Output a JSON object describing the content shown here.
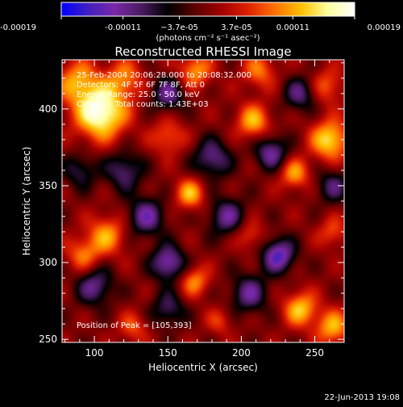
{
  "chart_data": {
    "type": "heatmap",
    "title": "Reconstructed RHESSI Image",
    "xlabel": "Heliocentric X (arcsec)",
    "ylabel": "Heliocentric Y (arcsec)",
    "xlim": [
      78,
      270
    ],
    "ylim": [
      248,
      432
    ],
    "xticks": [
      100,
      150,
      200,
      250
    ],
    "yticks": [
      250,
      300,
      350,
      400
    ],
    "colorbar": {
      "range": [
        -0.00019,
        0.00019
      ],
      "ticks": [
        -0.00019,
        -0.00011,
        -3.7e-05,
        3.7e-05,
        0.00011,
        0.00019
      ],
      "tick_labels": [
        "-0.00019",
        "-0.00011",
        "−3.7e-05",
        "3.7e-05",
        "0.00011",
        "0.00019"
      ],
      "units_label": "(photons cm⁻² s⁻¹ asec⁻²)",
      "colors": [
        "#0000ff",
        "#4020c0",
        "#7a28a8",
        "#4a1a60",
        "#000000",
        "#5a0000",
        "#a00000",
        "#e02000",
        "#ff7000",
        "#ffc000",
        "#ffffa0",
        "#ffffff"
      ]
    },
    "annotations": [
      "25-Feb-2004 20:06:28.000  to  20:08:32.000",
      "Detectors: 4F 5F 6F 7F 8F, Att 0",
      "Energy Range: 25.0 - 50.0 keV",
      "Clean      Total counts: 1.43E+03"
    ],
    "peak_label": "Position of Peak = [105,393]",
    "peak": [
      105,
      393
    ],
    "sources": [
      {
        "x": 104,
        "y": 398,
        "a": 1.0,
        "s": 12
      },
      {
        "x": 88,
        "y": 418,
        "a": 0.55,
        "s": 10
      },
      {
        "x": 120,
        "y": 420,
        "a": 0.45,
        "s": 9
      },
      {
        "x": 168,
        "y": 425,
        "a": 0.55,
        "s": 8
      },
      {
        "x": 150,
        "y": 382,
        "a": 0.4,
        "s": 8
      },
      {
        "x": 208,
        "y": 392,
        "a": 0.6,
        "s": 8
      },
      {
        "x": 212,
        "y": 425,
        "a": 0.45,
        "s": 8
      },
      {
        "x": 258,
        "y": 415,
        "a": 0.4,
        "s": 8
      },
      {
        "x": 260,
        "y": 380,
        "a": 0.75,
        "s": 9
      },
      {
        "x": 165,
        "y": 345,
        "a": 0.6,
        "s": 7
      },
      {
        "x": 236,
        "y": 358,
        "a": 0.55,
        "s": 7
      },
      {
        "x": 108,
        "y": 318,
        "a": 0.55,
        "s": 9
      },
      {
        "x": 92,
        "y": 305,
        "a": 0.45,
        "s": 8
      },
      {
        "x": 205,
        "y": 318,
        "a": 0.35,
        "s": 7
      },
      {
        "x": 262,
        "y": 320,
        "a": 0.35,
        "s": 7
      },
      {
        "x": 168,
        "y": 288,
        "a": 0.5,
        "s": 7
      },
      {
        "x": 240,
        "y": 270,
        "a": 0.65,
        "s": 8
      },
      {
        "x": 262,
        "y": 258,
        "a": 0.6,
        "s": 8
      },
      {
        "x": 126,
        "y": 258,
        "a": 0.35,
        "s": 7
      },
      {
        "x": 185,
        "y": 262,
        "a": 0.3,
        "s": 6
      },
      {
        "x": 120,
        "y": 360,
        "a": -0.5,
        "s": 9
      },
      {
        "x": 180,
        "y": 368,
        "a": -0.55,
        "s": 9
      },
      {
        "x": 220,
        "y": 372,
        "a": -0.6,
        "s": 8
      },
      {
        "x": 150,
        "y": 410,
        "a": -0.55,
        "s": 8
      },
      {
        "x": 240,
        "y": 410,
        "a": -0.5,
        "s": 8
      },
      {
        "x": 135,
        "y": 330,
        "a": -0.6,
        "s": 9
      },
      {
        "x": 190,
        "y": 330,
        "a": -0.55,
        "s": 9
      },
      {
        "x": 225,
        "y": 305,
        "a": -0.75,
        "s": 8
      },
      {
        "x": 150,
        "y": 300,
        "a": -0.7,
        "s": 8
      },
      {
        "x": 100,
        "y": 285,
        "a": -0.55,
        "s": 9
      },
      {
        "x": 205,
        "y": 280,
        "a": -0.55,
        "s": 9
      },
      {
        "x": 150,
        "y": 270,
        "a": -0.45,
        "s": 8
      },
      {
        "x": 262,
        "y": 350,
        "a": -0.45,
        "s": 8
      },
      {
        "x": 90,
        "y": 360,
        "a": -0.4,
        "s": 8
      }
    ]
  },
  "footer": {
    "timestamp": "22-Jun-2013 19:08"
  }
}
